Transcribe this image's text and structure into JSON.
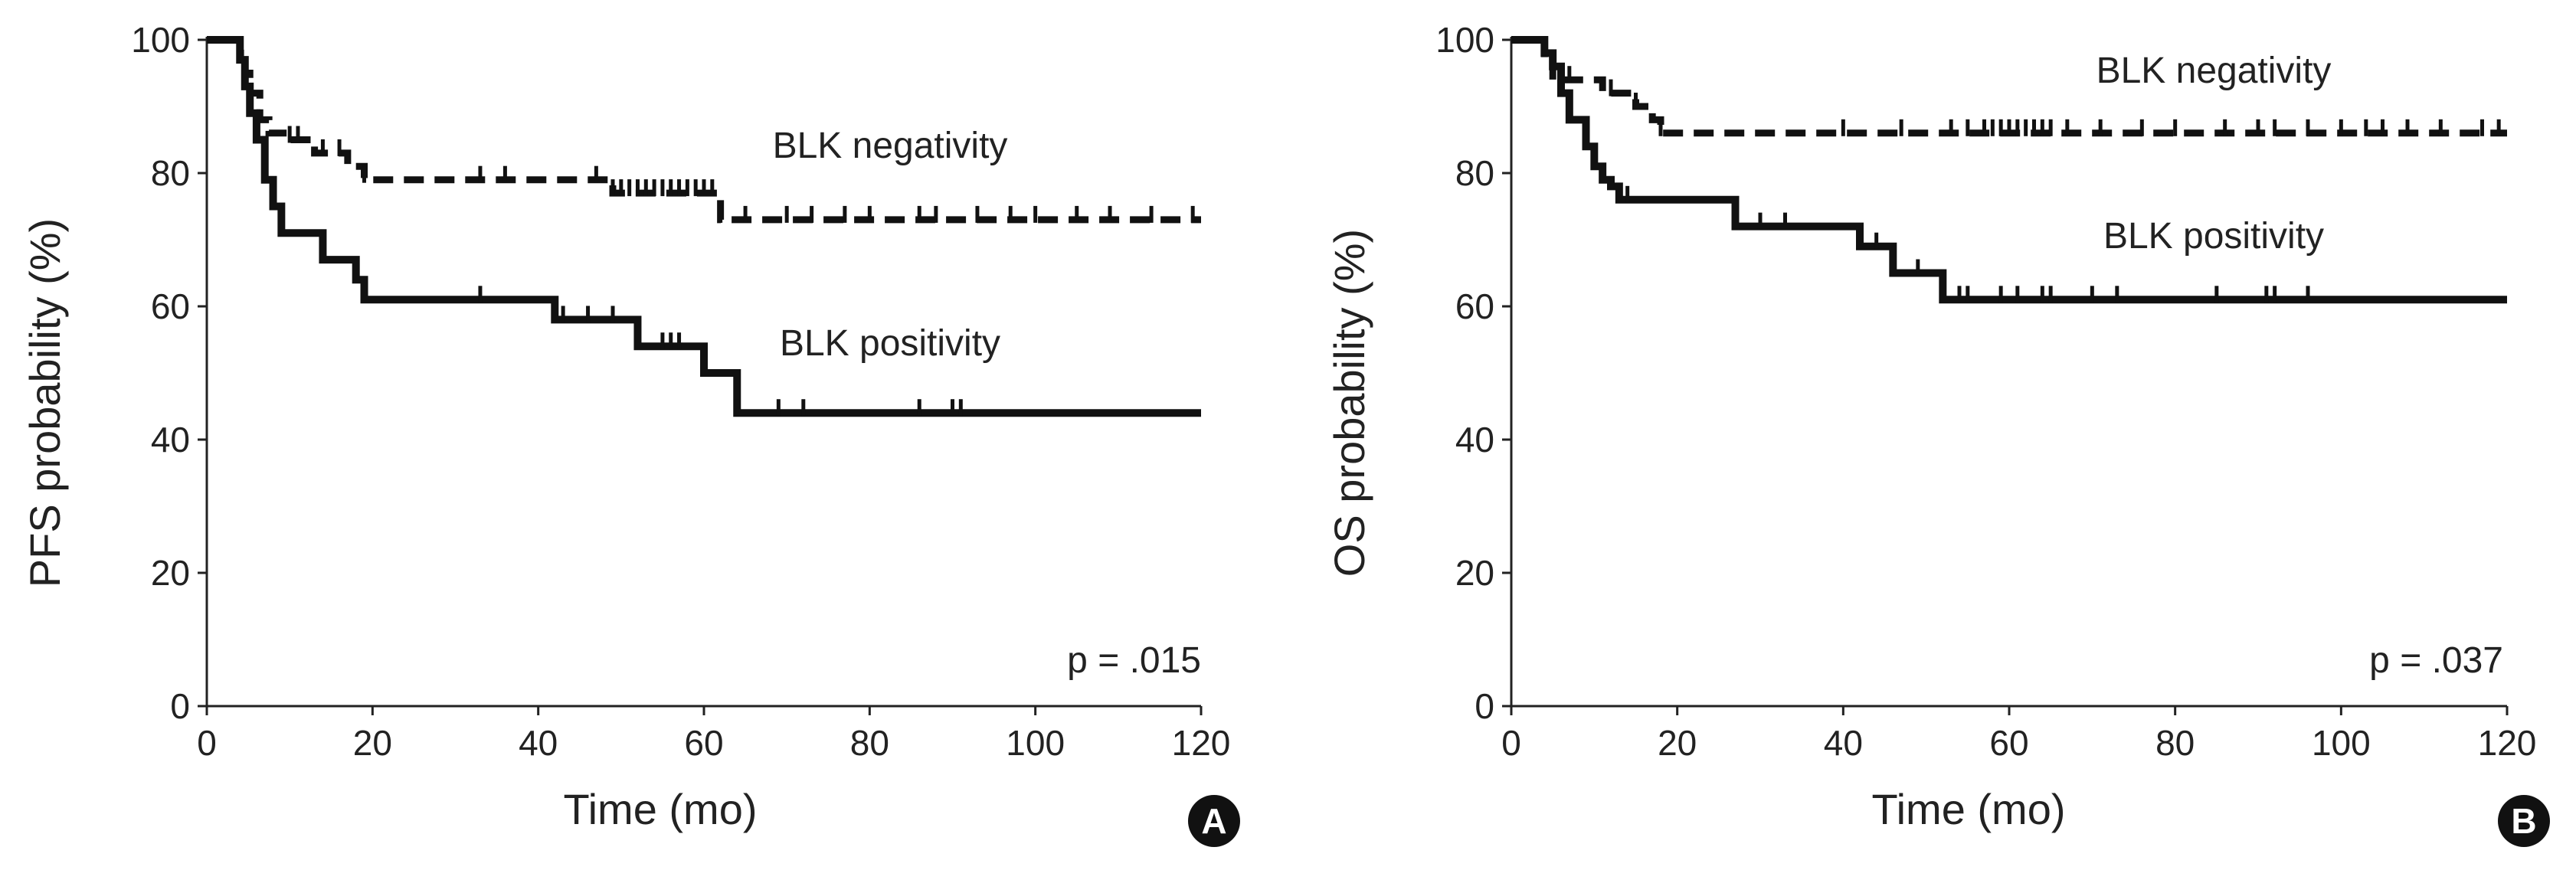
{
  "chart_data": [
    {
      "type": "line",
      "subtype": "kaplan-meier",
      "panel_label": "A",
      "xlabel": "Time (mo)",
      "ylabel": "PFS probability (%)",
      "xlim": [
        0,
        120
      ],
      "ylim": [
        0,
        100
      ],
      "x_ticks": [
        "0",
        "20",
        "40",
        "60",
        "80",
        "100",
        "120"
      ],
      "y_ticks": [
        "0",
        "20",
        "40",
        "60",
        "80",
        "100"
      ],
      "annotation": "p = .015",
      "series": [
        {
          "name": "BLK negativity",
          "label": "BLK negativity",
          "style": "dashed",
          "steps": [
            [
              0,
              100
            ],
            [
              4,
              98
            ],
            [
              4.6,
              95
            ],
            [
              5.2,
              92
            ],
            [
              6.4,
              88
            ],
            [
              7.5,
              86
            ],
            [
              10,
              85
            ],
            [
              13,
              83
            ],
            [
              17,
              81
            ],
            [
              19,
              79
            ],
            [
              36,
              79
            ],
            [
              48,
              79
            ],
            [
              49,
              77
            ],
            [
              61,
              77
            ],
            [
              62,
              73
            ],
            [
              120,
              73
            ]
          ],
          "censor_times": [
            10,
            11,
            14,
            16,
            19,
            33,
            36,
            47,
            49,
            50,
            51,
            52,
            53,
            54,
            55,
            56,
            57,
            58,
            59,
            60,
            61,
            62,
            65,
            70,
            73,
            77,
            80,
            86,
            88,
            93,
            97,
            100,
            105,
            109,
            114,
            119
          ]
        },
        {
          "name": "BLK positivity",
          "label": "BLK positivity",
          "style": "solid",
          "steps": [
            [
              0,
              100
            ],
            [
              4,
              97
            ],
            [
              4.6,
              93
            ],
            [
              5.2,
              89
            ],
            [
              6,
              85
            ],
            [
              7,
              79
            ],
            [
              8,
              75
            ],
            [
              9,
              71
            ],
            [
              13,
              71
            ],
            [
              14,
              67
            ],
            [
              17,
              67
            ],
            [
              18,
              64
            ],
            [
              19,
              61
            ],
            [
              41,
              61
            ],
            [
              42,
              58
            ],
            [
              51,
              58
            ],
            [
              52,
              54
            ],
            [
              59,
              54
            ],
            [
              60,
              50
            ],
            [
              63,
              50
            ],
            [
              64,
              44
            ],
            [
              120,
              44
            ]
          ],
          "censor_times": [
            33,
            43,
            46,
            49,
            55,
            56,
            57,
            64,
            69,
            72,
            86,
            90,
            91
          ]
        }
      ]
    },
    {
      "type": "line",
      "subtype": "kaplan-meier",
      "panel_label": "B",
      "xlabel": "Time (mo)",
      "ylabel": "OS probability (%)",
      "xlim": [
        0,
        120
      ],
      "ylim": [
        0,
        100
      ],
      "x_ticks": [
        "0",
        "20",
        "40",
        "60",
        "80",
        "100",
        "120"
      ],
      "y_ticks": [
        "0",
        "20",
        "40",
        "60",
        "80",
        "100"
      ],
      "annotation": "p = .037",
      "series": [
        {
          "name": "BLK negativity",
          "label": "BLK negativity",
          "style": "dashed",
          "steps": [
            [
              0,
              100
            ],
            [
              4,
              97
            ],
            [
              5,
              94
            ],
            [
              10,
              94
            ],
            [
              11,
              92
            ],
            [
              15,
              90
            ],
            [
              17,
              88
            ],
            [
              18,
              86
            ],
            [
              120,
              86
            ]
          ],
          "censor_times": [
            7,
            12,
            15,
            18,
            40,
            47,
            53,
            55,
            57,
            58,
            59,
            60,
            61,
            62,
            63,
            64,
            65,
            67,
            71,
            76,
            80,
            86,
            90,
            92,
            96,
            100,
            103,
            105,
            108,
            112,
            117,
            119
          ]
        },
        {
          "name": "BLK positivity",
          "label": "BLK positivity",
          "style": "solid",
          "steps": [
            [
              0,
              100
            ],
            [
              4,
              98
            ],
            [
              5,
              96
            ],
            [
              6,
              92
            ],
            [
              7,
              88
            ],
            [
              9,
              84
            ],
            [
              10,
              81
            ],
            [
              11,
              79
            ],
            [
              12,
              78
            ],
            [
              13,
              76
            ],
            [
              26,
              76
            ],
            [
              27,
              72
            ],
            [
              41,
              72
            ],
            [
              42,
              69
            ],
            [
              45,
              69
            ],
            [
              46,
              65
            ],
            [
              51,
              65
            ],
            [
              52,
              61
            ],
            [
              120,
              61
            ]
          ],
          "censor_times": [
            14,
            30,
            33,
            44,
            49,
            54,
            55,
            59,
            61,
            64,
            65,
            70,
            73,
            85,
            91,
            92,
            96
          ]
        }
      ]
    }
  ]
}
